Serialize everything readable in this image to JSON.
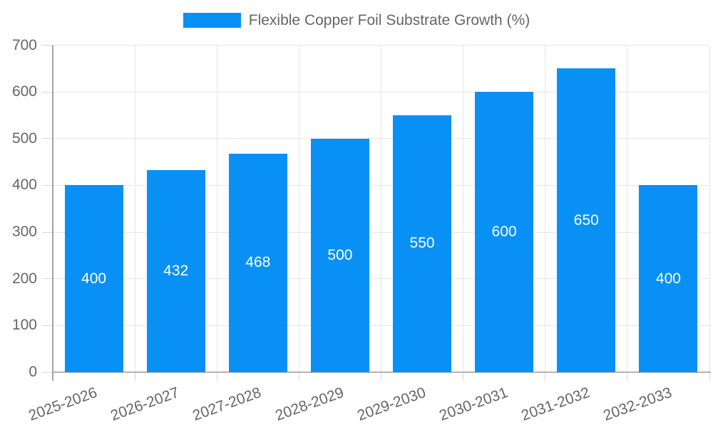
{
  "chart_data": {
    "type": "bar",
    "title": "Flexible Copper Foil Substrate Growth (%)",
    "categories": [
      "2025-2026",
      "2026-2027",
      "2027-2028",
      "2028-2029",
      "2029-2030",
      "2030-2031",
      "2031-2032",
      "2032-2033"
    ],
    "values": [
      400,
      432,
      468,
      500,
      550,
      600,
      650,
      400
    ],
    "bar_labels": [
      "400",
      "432",
      "468",
      "500",
      "550",
      "600",
      "650",
      "400"
    ],
    "xlabel": "",
    "ylabel": "",
    "ylim": [
      0,
      700
    ],
    "yticks": [
      0,
      100,
      200,
      300,
      400,
      500,
      600,
      700
    ],
    "grid": true,
    "legend": {
      "position": "top",
      "entries": [
        "Flexible Copper Foil Substrate Growth (%)"
      ]
    }
  },
  "colors": {
    "bar": "#0990f5",
    "bar_label_text": "#ffffff",
    "axis_text": "#666666",
    "legend_text": "#666666",
    "grid_line": "#e6e6e6",
    "y_axis_line": "#a3a3a3",
    "x_axis_line": "#b3b3b3",
    "tick_line": "#d6d6d6",
    "background": "#ffffff"
  }
}
